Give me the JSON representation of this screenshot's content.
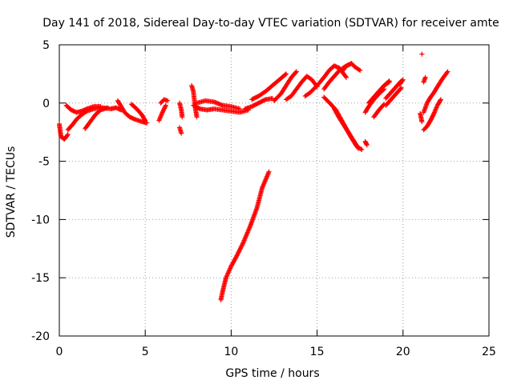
{
  "chart_data": {
    "type": "scatter",
    "title": "Day 141 of 2018, Sidereal Day-to-day VTEC variation (SDTVAR) for receiver amte",
    "xlabel": "GPS time / hours",
    "ylabel": "SDTVAR / TECUs",
    "xlim": [
      0,
      25
    ],
    "ylim": [
      -20,
      5
    ],
    "xticks": [
      0,
      5,
      10,
      15,
      20,
      25
    ],
    "yticks": [
      -20,
      -15,
      -10,
      -5,
      0,
      5
    ],
    "grid": true,
    "marker": "+",
    "marker_color": "#ff0000",
    "series": [
      {
        "name": "SDTVAR",
        "segments": [
          {
            "x": [
              0.0,
              0.1,
              0.3,
              0.5
            ],
            "y": [
              -1.8,
              -2.9,
              -3.1,
              -2.7
            ]
          },
          {
            "x": [
              0.5,
              0.8,
              1.0,
              1.3,
              1.6,
              2.0,
              2.5,
              3.0,
              3.3,
              3.6
            ],
            "y": [
              -2.3,
              -1.8,
              -1.4,
              -1.0,
              -0.7,
              -0.5,
              -0.4,
              -0.5,
              -0.4,
              -0.6
            ]
          },
          {
            "x": [
              0.4,
              0.7,
              1.0,
              1.3,
              1.6,
              2.0,
              2.4
            ],
            "y": [
              -0.2,
              -0.6,
              -0.8,
              -0.7,
              -0.5,
              -0.3,
              -0.3
            ]
          },
          {
            "x": [
              1.5,
              1.8,
              2.1,
              2.4,
              2.8
            ],
            "y": [
              -2.2,
              -1.6,
              -1.0,
              -0.6,
              -0.4
            ]
          },
          {
            "x": [
              3.4,
              3.6,
              3.8,
              4.1,
              4.4,
              4.8,
              5.1
            ],
            "y": [
              0.2,
              -0.3,
              -0.8,
              -1.2,
              -1.4,
              -1.6,
              -1.7
            ]
          },
          {
            "x": [
              4.2,
              4.5,
              4.8,
              5.0
            ],
            "y": [
              -0.1,
              -0.5,
              -1.0,
              -1.5
            ]
          },
          {
            "x": [
              5.8,
              6.0,
              6.2
            ],
            "y": [
              -1.5,
              -0.8,
              -0.2
            ]
          },
          {
            "x": [
              5.9,
              6.1,
              6.3
            ],
            "y": [
              0.0,
              0.3,
              0.2
            ]
          },
          {
            "x": [
              7.0,
              7.1,
              7.15
            ],
            "y": [
              0.0,
              -0.6,
              -1.2
            ]
          },
          {
            "x": [
              7.0,
              7.1
            ],
            "y": [
              -2.1,
              -2.6
            ]
          },
          {
            "x": [
              7.7,
              7.8,
              7.9,
              8.0
            ],
            "y": [
              1.5,
              1.0,
              -0.3,
              -1.2
            ]
          },
          {
            "x": [
              7.8,
              8.2,
              8.6,
              9.0,
              9.5,
              10.0,
              10.5,
              11.0
            ],
            "y": [
              -0.2,
              -0.5,
              -0.6,
              -0.5,
              -0.6,
              -0.7,
              -0.8,
              -0.6
            ]
          },
          {
            "x": [
              8.0,
              8.5,
              9.0,
              9.5,
              10.0,
              10.5
            ],
            "y": [
              0.0,
              0.2,
              0.1,
              -0.2,
              -0.3,
              -0.5
            ]
          },
          {
            "x": [
              9.4,
              9.5,
              9.7,
              10.0,
              10.3,
              10.7,
              11.1,
              11.5,
              11.8,
              12.2
            ],
            "y": [
              -16.9,
              -16.2,
              -15.0,
              -14.0,
              -13.2,
              -12.0,
              -10.6,
              -9.0,
              -7.3,
              -5.9
            ]
          },
          {
            "x": [
              10.8,
              11.2,
              11.6,
              12.0,
              12.4
            ],
            "y": [
              -0.5,
              -0.3,
              0.0,
              0.3,
              0.4
            ]
          },
          {
            "x": [
              11.2,
              11.6,
              12.0,
              12.4,
              12.8,
              13.2
            ],
            "y": [
              0.3,
              0.6,
              1.0,
              1.5,
              2.0,
              2.5
            ]
          },
          {
            "x": [
              12.5,
              12.9,
              13.2,
              13.5,
              13.8
            ],
            "y": [
              0.2,
              0.8,
              1.5,
              2.2,
              2.7
            ]
          },
          {
            "x": [
              13.2,
              13.5,
              13.8,
              14.1,
              14.4,
              14.7,
              15.0
            ],
            "y": [
              0.3,
              0.6,
              1.2,
              1.8,
              2.3,
              2.0,
              1.4
            ]
          },
          {
            "x": [
              14.3,
              14.6,
              15.0,
              15.4,
              15.7,
              16.0,
              16.3,
              16.7
            ],
            "y": [
              0.6,
              0.9,
              1.5,
              2.2,
              2.8,
              3.2,
              3.0,
              2.2
            ]
          },
          {
            "x": [
              15.4,
              15.7,
              16.0,
              16.3,
              16.6,
              17.0
            ],
            "y": [
              1.2,
              1.8,
              2.3,
              2.8,
              3.1,
              3.4
            ]
          },
          {
            "x": [
              16.5,
              16.7,
              17.0,
              17.2,
              17.5
            ],
            "y": [
              2.8,
              3.2,
              3.4,
              3.1,
              2.8
            ]
          },
          {
            "x": [
              15.4,
              15.8,
              16.1,
              16.4,
              16.7,
              17.0,
              17.3,
              17.6
            ],
            "y": [
              0.5,
              -0.1,
              -0.6,
              -1.4,
              -2.2,
              -3.0,
              -3.7,
              -4.0
            ]
          },
          {
            "x": [
              16.0,
              16.3,
              16.6,
              16.9,
              17.2,
              17.4
            ],
            "y": [
              -0.5,
              -1.3,
              -2.0,
              -2.7,
              -3.4,
              -3.9
            ]
          },
          {
            "x": [
              17.8,
              17.9
            ],
            "y": [
              -3.3,
              -3.6
            ]
          },
          {
            "x": [
              17.8,
              18.0,
              18.3,
              18.6,
              18.9
            ],
            "y": [
              -0.8,
              -0.3,
              0.3,
              0.8,
              1.2
            ]
          },
          {
            "x": [
              18.0,
              18.3,
              18.6,
              18.9,
              19.2
            ],
            "y": [
              0.0,
              0.5,
              1.0,
              1.5,
              1.9
            ]
          },
          {
            "x": [
              18.3,
              18.6,
              18.9,
              19.2
            ],
            "y": [
              0.5,
              1.0,
              1.5,
              1.8
            ]
          },
          {
            "x": [
              18.3,
              18.6,
              18.9
            ],
            "y": [
              -1.2,
              -0.6,
              -0.1
            ]
          },
          {
            "x": [
              19.0,
              19.3,
              19.6,
              19.9
            ],
            "y": [
              -0.2,
              0.3,
              0.8,
              1.3
            ]
          },
          {
            "x": [
              19.0,
              19.3,
              19.6,
              19.9
            ],
            "y": [
              0.4,
              0.9,
              1.4,
              1.9
            ]
          },
          {
            "x": [
              19.8,
              20.0
            ],
            "y": [
              1.6,
              2.0
            ]
          },
          {
            "x": [
              21.0,
              21.1
            ],
            "y": [
              -0.9,
              -1.6
            ]
          },
          {
            "x": [
              21.2,
              21.4,
              21.6,
              21.8,
              22.0,
              22.3,
              22.6
            ],
            "y": [
              -0.8,
              0.0,
              0.5,
              0.9,
              1.4,
              2.1,
              2.7
            ]
          },
          {
            "x": [
              21.2,
              21.3
            ],
            "y": [
              1.8,
              2.2
            ]
          },
          {
            "x": [
              21.2,
              21.4,
              21.6,
              21.8,
              22.0,
              22.2
            ],
            "y": [
              -2.3,
              -2.0,
              -1.5,
              -0.9,
              -0.2,
              0.3
            ]
          },
          {
            "x": [
              21.1
            ],
            "y": [
              4.2
            ]
          }
        ]
      }
    ]
  }
}
